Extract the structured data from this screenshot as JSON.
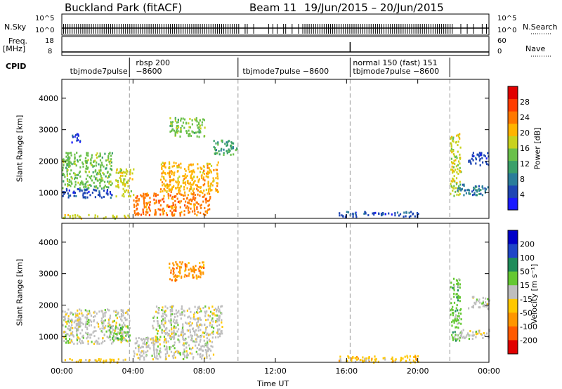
{
  "header": {
    "site_title": "Buckland Park (fitACF)",
    "beam_label": "Beam 11",
    "date_range": "19/Jun/2015 – 20/Jun/2015"
  },
  "meta_panels": {
    "nsky_label": "N.Sky",
    "nsky_ticks": [
      "10^5",
      "10^0"
    ],
    "nsearch_label": "N.Search",
    "freq_label": "Freq.",
    "freq_unit": "[MHz]",
    "freq_ticks": [
      "18",
      "8"
    ],
    "nave_label": "Nave",
    "nave_ticks": [
      "60",
      "0"
    ],
    "cpid_label": "CPID",
    "cpid_entries": [
      {
        "text": "tbjmode7pulse",
        "start_h": 0.3,
        "row": 1
      },
      {
        "text": "rbsp 200",
        "start_h": 4.0,
        "row": 0
      },
      {
        "text": "−8600",
        "start_h": 4.0,
        "row": 1
      },
      {
        "text": "tbjmode7pulse  −8600",
        "start_h": 10.0,
        "row": 1
      },
      {
        "text": "normal 150 (fast) 151",
        "start_h": 16.2,
        "row": 0
      },
      {
        "text": "tbjmode7pulse  −8600",
        "start_h": 16.2,
        "row": 1
      }
    ],
    "cpid_boundaries_h": [
      3.8,
      9.9,
      16.2,
      21.8
    ]
  },
  "axes": {
    "xlabel": "Time UT",
    "x_ticks": [
      "00:00",
      "04:00",
      "08:00",
      "12:00",
      "16:00",
      "20:00",
      "00:00"
    ],
    "x_range_h": [
      0,
      24
    ],
    "ylabel": "Slant Range [km]",
    "y_ticks": [
      1000,
      2000,
      3000,
      4000
    ],
    "y_range_km": [
      180,
      4600
    ]
  },
  "chart_data": [
    {
      "type": "heatmap",
      "title": "",
      "quantity": "Power",
      "colorbar_label": "Power [dB]",
      "colorbar_ticks": [
        4,
        8,
        12,
        16,
        20,
        24,
        28
      ],
      "colorbar_range": [
        0,
        32
      ],
      "colors": [
        "#1a1aff",
        "#1e46b4",
        "#2a7d9a",
        "#3aa06a",
        "#6ac04a",
        "#c8d21e",
        "#ffb400",
        "#ff7800",
        "#ff3c00",
        "#e10000"
      ],
      "regions": [
        {
          "t0": 0.0,
          "t1": 2.8,
          "r0": 850,
          "r1": 1150,
          "value": 6
        },
        {
          "t0": 0.0,
          "t1": 2.8,
          "r0": 1150,
          "r1": 2300,
          "value": 14
        },
        {
          "t0": 0.0,
          "t1": 3.8,
          "r0": 200,
          "r1": 320,
          "value": 18
        },
        {
          "t0": 0.4,
          "t1": 1.0,
          "r0": 2600,
          "r1": 2900,
          "value": 6
        },
        {
          "t0": 3.0,
          "t1": 4.0,
          "r0": 900,
          "r1": 1800,
          "value": 16
        },
        {
          "t0": 4.0,
          "t1": 8.3,
          "r0": 300,
          "r1": 1000,
          "value": 24
        },
        {
          "t0": 5.5,
          "t1": 8.8,
          "r0": 1000,
          "r1": 2000,
          "value": 20
        },
        {
          "t0": 6.0,
          "t1": 8.0,
          "r0": 2800,
          "r1": 3400,
          "value": 14
        },
        {
          "t0": 8.5,
          "t1": 9.8,
          "r0": 2200,
          "r1": 2700,
          "value": 10
        },
        {
          "t0": 15.5,
          "t1": 20.0,
          "r0": 250,
          "r1": 420,
          "value": 6
        },
        {
          "t0": 21.8,
          "t1": 22.4,
          "r0": 900,
          "r1": 2900,
          "value": 18
        },
        {
          "t0": 22.2,
          "t1": 24.0,
          "r0": 950,
          "r1": 1300,
          "value": 8
        },
        {
          "t0": 22.8,
          "t1": 24.0,
          "r0": 1900,
          "r1": 2300,
          "value": 4
        }
      ]
    },
    {
      "type": "heatmap",
      "title": "",
      "quantity": "Velocity",
      "colorbar_label": "Velocity [m s⁻¹]",
      "colorbar_ticks": [
        200,
        100,
        50,
        15,
        -15,
        -50,
        -100,
        -200
      ],
      "colorbar_range": [
        -250,
        250
      ],
      "colors": [
        "#0000c8",
        "#1e46c8",
        "#1e8c5a",
        "#64c832",
        "#bebebe",
        "#ffc800",
        "#ff9600",
        "#ff5a00",
        "#e10000"
      ],
      "regions": [
        {
          "t0": 0.0,
          "t1": 3.8,
          "r0": 800,
          "r1": 1900,
          "value": 0
        },
        {
          "t0": 0.0,
          "t1": 3.8,
          "r0": 200,
          "r1": 320,
          "value": -40
        },
        {
          "t0": 2.5,
          "t1": 3.8,
          "r0": 900,
          "r1": 1400,
          "value": 30
        },
        {
          "t0": 4.0,
          "t1": 8.5,
          "r0": 300,
          "r1": 1000,
          "value": 0
        },
        {
          "t0": 5.0,
          "t1": 9.0,
          "r0": 1000,
          "r1": 2000,
          "value": 5
        },
        {
          "t0": 6.0,
          "t1": 8.0,
          "r0": 2800,
          "r1": 3400,
          "value": -120
        },
        {
          "t0": 15.5,
          "t1": 20.0,
          "r0": 200,
          "r1": 420,
          "value": -30
        },
        {
          "t0": 21.8,
          "t1": 22.4,
          "r0": 900,
          "r1": 2900,
          "value": 40
        },
        {
          "t0": 22.2,
          "t1": 24.0,
          "r0": 950,
          "r1": 1250,
          "value": 0
        },
        {
          "t0": 22.8,
          "t1": 24.0,
          "r0": 1900,
          "r1": 2300,
          "value": 0
        }
      ]
    }
  ]
}
